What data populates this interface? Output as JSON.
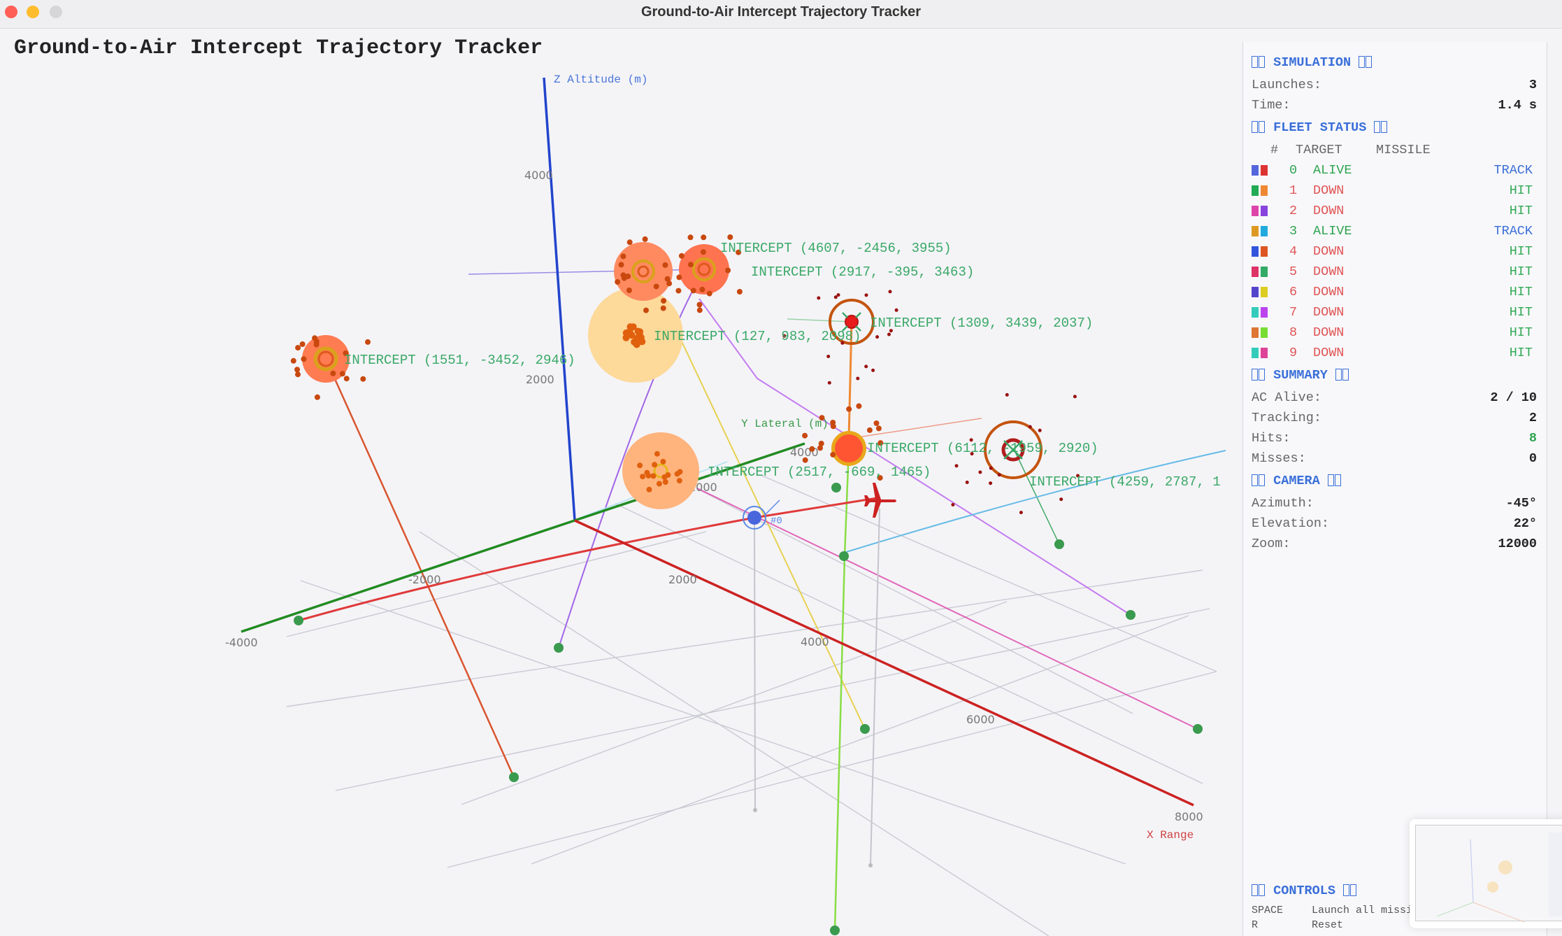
{
  "window": {
    "title": "Ground-to-Air Intercept Trajectory Tracker"
  },
  "app": {
    "heading": "Ground-to-Air Intercept Trajectory Tracker"
  },
  "scene": {
    "axes": {
      "z_label": "Z  Altitude (m)",
      "y_label": "Y  Lateral (m)",
      "x_label": "X  Range",
      "z_ticks": [
        "4000",
        "2000"
      ],
      "y_ticks": [
        "-4000",
        "-2000",
        "2000",
        "4000"
      ],
      "x_ticks": [
        "2000",
        "4000",
        "6000",
        "8000"
      ],
      "colors": {
        "x": "#cc2222",
        "y": "#228b22",
        "z": "#2244cc"
      }
    },
    "intercept_labels": [
      "INTERCEPT (1551, -3452, 2946)",
      "INTERCEPT (127, 983, 2098)",
      "INTERCEPT (2917, -395, 3463)",
      "INTERCEPT (4607, -2456, 3955)",
      "INTERCEPT (1309, 3439, 2037)",
      "INTERCEPT (2517, -669, 1465)",
      "INTERCEPT (6112, -1959, 2920)",
      "INTERCEPT (4259, 2787, 1"
    ],
    "label_color": "#3aa866",
    "target_marker_label": "#0"
  },
  "panel": {
    "simulation": {
      "title": "SIMULATION",
      "launches_label": "Launches:",
      "launches": "3",
      "time_label": "Time:",
      "time": "1.4 s"
    },
    "fleet": {
      "title": "FLEET STATUS",
      "col_num": "#",
      "col_target": "TARGET",
      "col_missile": "MISSILE",
      "rows": [
        {
          "num": "0",
          "target": "ALIVE",
          "missile": "TRACK",
          "c1": "#5566dd",
          "c2": "#dd3333"
        },
        {
          "num": "1",
          "target": "DOWN",
          "missile": "HIT",
          "c1": "#22aa55",
          "c2": "#ee8833"
        },
        {
          "num": "2",
          "target": "DOWN",
          "missile": "HIT",
          "c1": "#dd44aa",
          "c2": "#8844dd"
        },
        {
          "num": "3",
          "target": "ALIVE",
          "missile": "TRACK",
          "c1": "#dd9922",
          "c2": "#22aadd"
        },
        {
          "num": "4",
          "target": "DOWN",
          "missile": "HIT",
          "c1": "#3355dd",
          "c2": "#dd5522"
        },
        {
          "num": "5",
          "target": "DOWN",
          "missile": "HIT",
          "c1": "#dd3366",
          "c2": "#33aa66"
        },
        {
          "num": "6",
          "target": "DOWN",
          "missile": "HIT",
          "c1": "#5544cc",
          "c2": "#ddcc22"
        },
        {
          "num": "7",
          "target": "DOWN",
          "missile": "HIT",
          "c1": "#33ccbb",
          "c2": "#bb44ee"
        },
        {
          "num": "8",
          "target": "DOWN",
          "missile": "HIT",
          "c1": "#dd7733",
          "c2": "#77dd33"
        },
        {
          "num": "9",
          "target": "DOWN",
          "missile": "HIT",
          "c1": "#33ccbb",
          "c2": "#dd4499"
        }
      ],
      "status_colors": {
        "ALIVE": "#2ea44f",
        "DOWN": "#e05555",
        "TRACK": "#3b6fd6",
        "HIT": "#33aa55"
      }
    },
    "summary": {
      "title": "SUMMARY",
      "ac_alive_label": "AC Alive:",
      "ac_alive": "2 / 10",
      "tracking_label": "Tracking:",
      "tracking": "2",
      "hits_label": "Hits:",
      "hits": "8",
      "misses_label": "Misses:",
      "misses": "0"
    },
    "camera": {
      "title": "CAMERA",
      "azimuth_label": "Azimuth:",
      "azimuth": "-45°",
      "elevation_label": "Elevation:",
      "elevation": "22°",
      "zoom_label": "Zoom:",
      "zoom": "12000"
    },
    "controls": {
      "title": "CONTROLS",
      "items": [
        {
          "key": "SPACE",
          "action": "Launch all missiles"
        },
        {
          "key": "R",
          "action": "Reset"
        }
      ]
    }
  }
}
